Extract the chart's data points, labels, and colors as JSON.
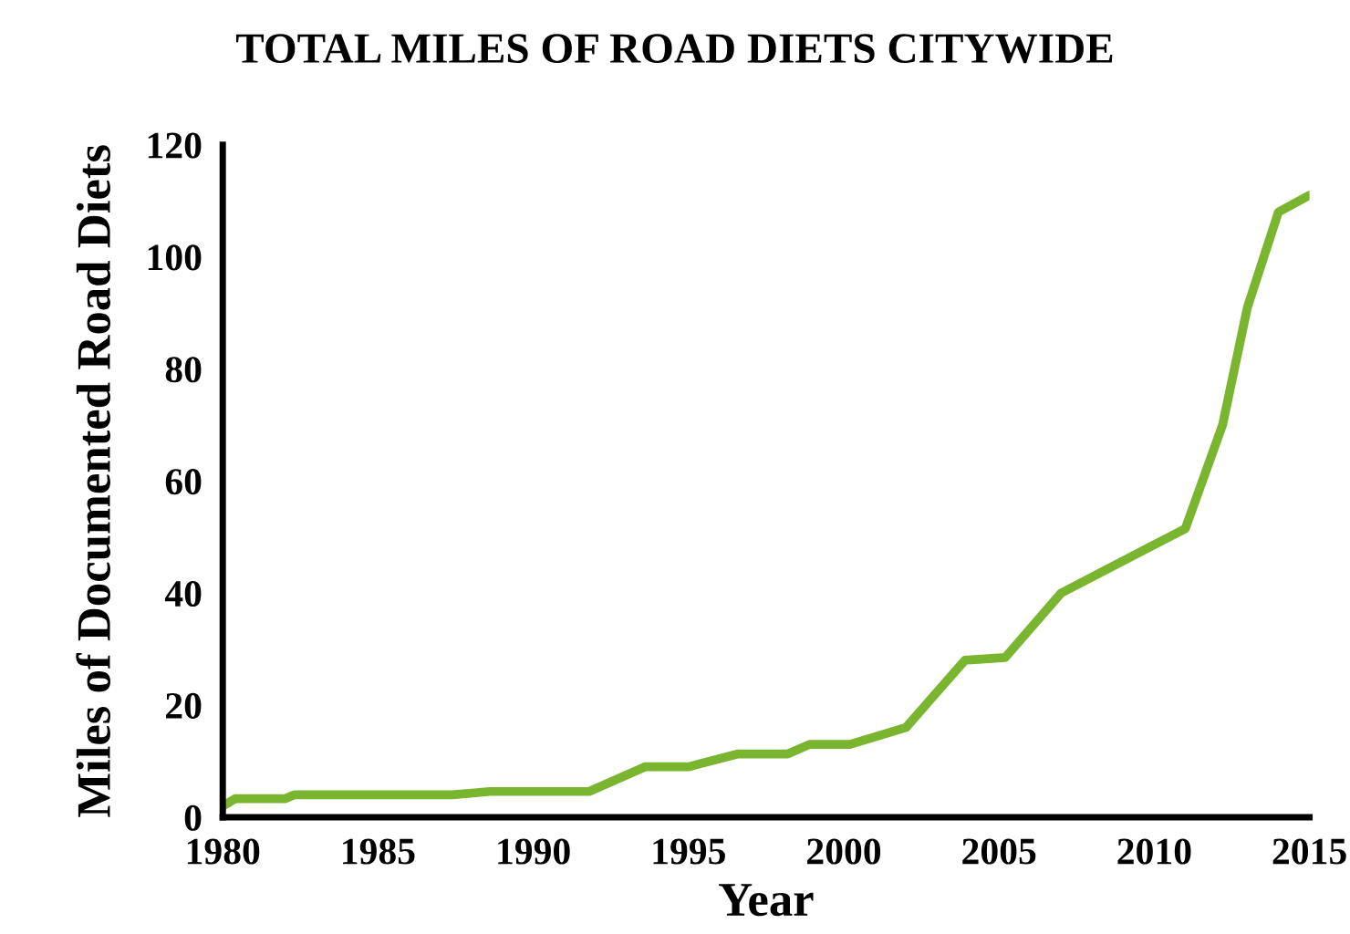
{
  "chart_data": {
    "type": "line",
    "title": "TOTAL MILES OF ROAD DIETS CITYWIDE",
    "xlabel": "Year",
    "ylabel": "Miles of Documented Road Diets",
    "series": [
      {
        "color": "#7ab530",
        "x": [
          1980,
          1980.4,
          1982,
          1982.3,
          1987.4,
          1988.6,
          1991.8,
          1993.6,
          1995,
          1996.6,
          1998.2,
          1998.9,
          2000.2,
          2002,
          2003.9,
          2005.2,
          2007,
          2011,
          2012.2,
          2013,
          2014,
          2015
        ],
        "values": [
          2,
          3.3,
          3.3,
          4,
          4,
          4.6,
          4.6,
          9,
          9,
          11.3,
          11.3,
          13,
          13,
          16,
          28,
          28.5,
          40,
          51.5,
          70,
          91,
          108,
          111
        ]
      }
    ],
    "xlim": [
      1980,
      2015
    ],
    "xticks": [
      1980,
      1985,
      1990,
      1995,
      2000,
      2005,
      2010,
      2015
    ],
    "ylim": [
      0,
      120
    ],
    "yticks": [
      0,
      20,
      40,
      60,
      80,
      100,
      120
    ],
    "grid": false,
    "legend": false
  }
}
